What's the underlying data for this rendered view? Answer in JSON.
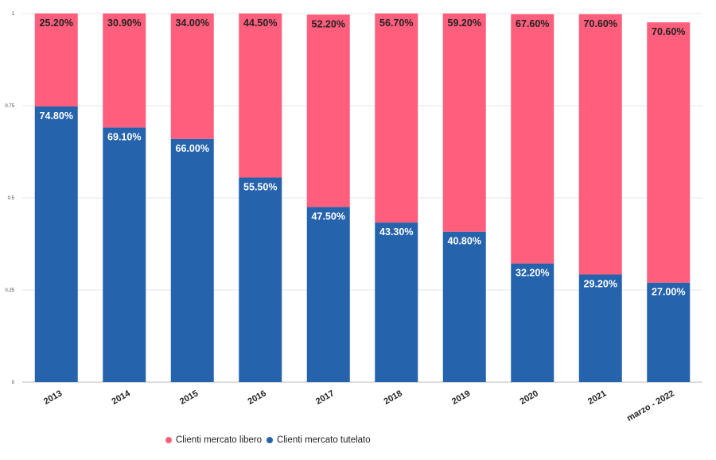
{
  "chart_data": {
    "type": "bar",
    "stacked": true,
    "categories": [
      "2013",
      "2014",
      "2015",
      "2016",
      "2017",
      "2018",
      "2019",
      "2020",
      "2021",
      "marzo - 2022"
    ],
    "series": [
      {
        "name": "Clienti mercato tutelato",
        "color": "#2563ad",
        "values": [
          0.748,
          0.691,
          0.66,
          0.555,
          0.475,
          0.433,
          0.408,
          0.322,
          0.292,
          0.27
        ],
        "labels": [
          "74.80%",
          "69.10%",
          "66.00%",
          "55.50%",
          "47.50%",
          "43.30%",
          "40.80%",
          "32.20%",
          "29.20%",
          "27.00%"
        ]
      },
      {
        "name": "Clienti mercato libero",
        "color": "#ff5e7c",
        "values": [
          0.252,
          0.309,
          0.34,
          0.445,
          0.522,
          0.567,
          0.592,
          0.676,
          0.706,
          0.706
        ],
        "labels": [
          "25.20%",
          "30.90%",
          "34.00%",
          "44.50%",
          "52.20%",
          "56.70%",
          "59.20%",
          "67.60%",
          "70.60%",
          "70.60%"
        ]
      }
    ],
    "yticks": [
      "0",
      "0.25",
      "0.5",
      "0.75",
      "1"
    ],
    "ylim": [
      0,
      1
    ],
    "grid": true,
    "legend": "bottom-left"
  }
}
